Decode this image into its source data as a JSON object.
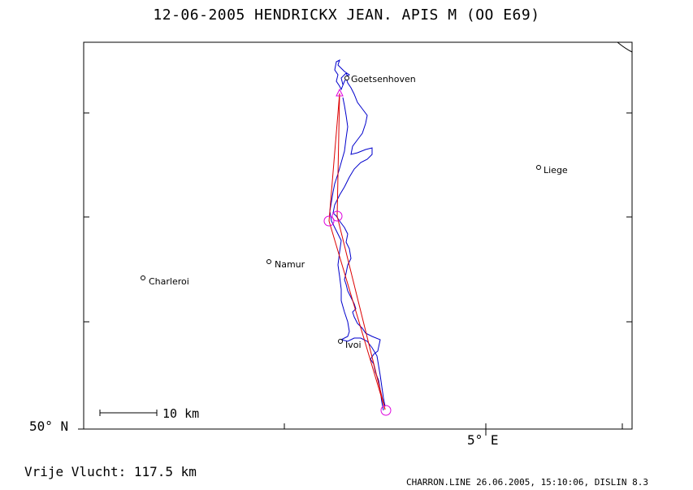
{
  "title": "12-06-2005   HENDRICKX JEAN.   APIS M (OO E69)",
  "axes": {
    "lat_label": "50° N",
    "lon_label": "5° E"
  },
  "scale_bar_label": "10 km",
  "distance_text": "Vrije Vlucht:  117.5 km",
  "footer": "CHARRON.LINE 26.06.2005, 15:10:06, DISLIN 8.3",
  "cities": [
    {
      "name": "Goetsenhoven"
    },
    {
      "name": "Liege"
    },
    {
      "name": "Namur"
    },
    {
      "name": "Charleroi"
    },
    {
      "name": "Ivoi"
    }
  ],
  "colors": {
    "track": "#0000cc",
    "route": "#dd0000",
    "turnpoint": "#dd00dd"
  }
}
